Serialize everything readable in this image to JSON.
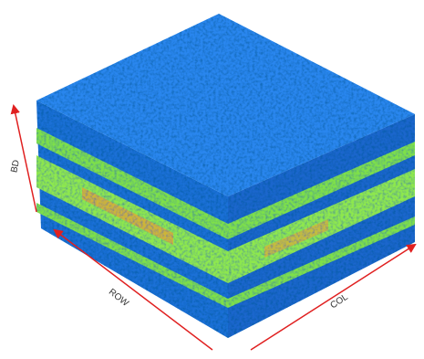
{
  "axes": {
    "bd": "BD",
    "row": "ROW",
    "col": "COL"
  }
}
